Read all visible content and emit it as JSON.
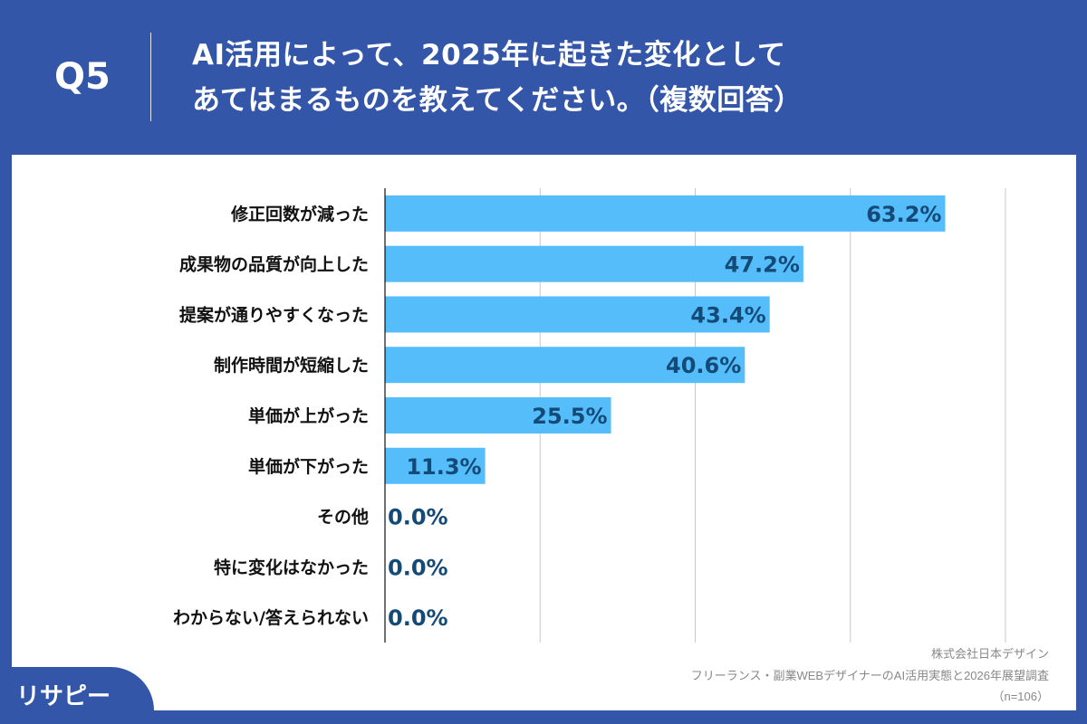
{
  "header": {
    "q": "Q5",
    "title_line1": "AI活用によって、2025年に起きた変化として",
    "title_line2": "あてはまるものを教えてください。（複数回答）"
  },
  "chart_data": {
    "type": "bar",
    "orientation": "horizontal",
    "categories": [
      "修正回数が減った",
      "成果物の品質が向上した",
      "提案が通りやすくなった",
      "制作時間が短縮した",
      "単価が上がった",
      "単価が下がった",
      "その他",
      "特に変化はなかった",
      "わからない/答えられない"
    ],
    "values": [
      63.2,
      47.2,
      43.4,
      40.6,
      25.5,
      11.3,
      0.0,
      0.0,
      0.0
    ],
    "data_labels": [
      "63.2%",
      "47.2%",
      "43.4%",
      "40.6%",
      "25.5%",
      "11.3%",
      "0.0%",
      "0.0%",
      "0.0%"
    ],
    "xlim": [
      0,
      70
    ],
    "grid": true,
    "bar_color": "#55bdf9",
    "label_color": "#144a78"
  },
  "source": {
    "company": "株式会社日本デザイン",
    "survey": "フリーランス・副業WEBデザイナーのAI活用実態と2026年展望調査",
    "n": "（n=106）"
  },
  "logo": {
    "text": "リサピー"
  },
  "colors": {
    "background": "#3356a8"
  }
}
